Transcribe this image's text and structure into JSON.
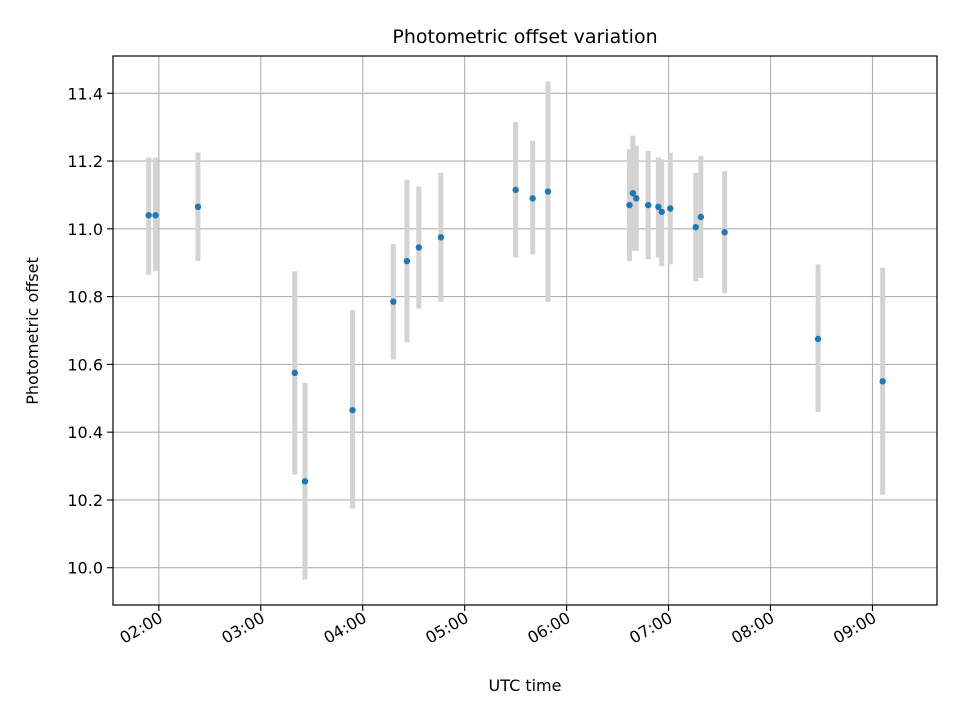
{
  "chart_data": {
    "type": "scatter",
    "title": "Photometric offset variation",
    "xlabel": "UTC time",
    "ylabel": "Photometric offset",
    "x_ticks": [
      "02:00",
      "03:00",
      "04:00",
      "05:00",
      "06:00",
      "07:00",
      "08:00",
      "09:00"
    ],
    "y_ticks": [
      "10.0",
      "10.2",
      "10.4",
      "10.6",
      "10.8",
      "11.0",
      "11.2",
      "11.4"
    ],
    "xlim": [
      "01:33",
      "09:38"
    ],
    "ylim": [
      9.89,
      11.51
    ],
    "grid": true,
    "colors": {
      "point": "#1f77b4",
      "errorbar": "#d3d3d3",
      "grid": "#b0b0b0"
    },
    "points": [
      {
        "time": "01:54",
        "y": 11.04,
        "ylow": 10.865,
        "yhigh": 11.21
      },
      {
        "time": "01:58",
        "y": 11.04,
        "ylow": 10.875,
        "yhigh": 11.21
      },
      {
        "time": "02:23",
        "y": 11.065,
        "ylow": 10.905,
        "yhigh": 11.225
      },
      {
        "time": "03:20",
        "y": 10.575,
        "ylow": 10.275,
        "yhigh": 10.875
      },
      {
        "time": "03:26",
        "y": 10.255,
        "ylow": 9.965,
        "yhigh": 10.545
      },
      {
        "time": "03:54",
        "y": 10.465,
        "ylow": 10.175,
        "yhigh": 10.76
      },
      {
        "time": "04:18",
        "y": 10.785,
        "ylow": 10.615,
        "yhigh": 10.955
      },
      {
        "time": "04:26",
        "y": 10.905,
        "ylow": 10.665,
        "yhigh": 11.145
      },
      {
        "time": "04:33",
        "y": 10.945,
        "ylow": 10.765,
        "yhigh": 11.125
      },
      {
        "time": "04:46",
        "y": 10.975,
        "ylow": 10.785,
        "yhigh": 11.165
      },
      {
        "time": "05:30",
        "y": 11.115,
        "ylow": 10.915,
        "yhigh": 11.315
      },
      {
        "time": "05:40",
        "y": 11.09,
        "ylow": 10.925,
        "yhigh": 11.26
      },
      {
        "time": "05:49",
        "y": 11.11,
        "ylow": 10.785,
        "yhigh": 11.435
      },
      {
        "time": "06:37",
        "y": 11.07,
        "ylow": 10.905,
        "yhigh": 11.235
      },
      {
        "time": "06:39",
        "y": 11.105,
        "ylow": 10.935,
        "yhigh": 11.275
      },
      {
        "time": "06:41",
        "y": 11.09,
        "ylow": 10.935,
        "yhigh": 11.245
      },
      {
        "time": "06:48",
        "y": 11.07,
        "ylow": 10.91,
        "yhigh": 11.23
      },
      {
        "time": "06:54",
        "y": 11.065,
        "ylow": 10.915,
        "yhigh": 11.21
      },
      {
        "time": "06:56",
        "y": 11.05,
        "ylow": 10.89,
        "yhigh": 11.205
      },
      {
        "time": "07:01",
        "y": 11.06,
        "ylow": 10.895,
        "yhigh": 11.225
      },
      {
        "time": "07:16",
        "y": 11.005,
        "ylow": 10.845,
        "yhigh": 11.165
      },
      {
        "time": "07:19",
        "y": 11.035,
        "ylow": 10.855,
        "yhigh": 11.215
      },
      {
        "time": "07:33",
        "y": 10.99,
        "ylow": 10.81,
        "yhigh": 11.17
      },
      {
        "time": "08:28",
        "y": 10.675,
        "ylow": 10.46,
        "yhigh": 10.895
      },
      {
        "time": "09:06",
        "y": 10.55,
        "ylow": 10.215,
        "yhigh": 10.885
      }
    ]
  }
}
